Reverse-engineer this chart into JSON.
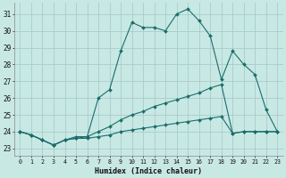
{
  "xlabel": "Humidex (Indice chaleur)",
  "bg_color": "#c8e8e4",
  "grid_color": "#a8cccc",
  "line_color": "#1a6e6a",
  "xticks": [
    0,
    1,
    2,
    3,
    4,
    5,
    6,
    7,
    8,
    9,
    10,
    11,
    12,
    13,
    14,
    15,
    16,
    17,
    18,
    19,
    20,
    21,
    22,
    23
  ],
  "yticks": [
    23,
    24,
    25,
    26,
    27,
    28,
    29,
    30,
    31
  ],
  "xlim": [
    -0.5,
    23.5
  ],
  "ylim": [
    22.55,
    31.65
  ],
  "line1_x": [
    0,
    1,
    2,
    3,
    4,
    5,
    6,
    7,
    8,
    9,
    10,
    11,
    12,
    13,
    14,
    15,
    16,
    17,
    18,
    19,
    20,
    21,
    22,
    23
  ],
  "line1_y": [
    24.0,
    23.8,
    23.5,
    23.2,
    23.5,
    23.7,
    23.7,
    26.0,
    26.5,
    28.8,
    30.5,
    30.2,
    30.2,
    30.0,
    31.0,
    31.3,
    30.6,
    29.7,
    27.1,
    28.8,
    28.0,
    27.4,
    25.3,
    24.0
  ],
  "line2_x": [
    0,
    1,
    2,
    3,
    4,
    5,
    6,
    7,
    8,
    9,
    10,
    11,
    12,
    13,
    14,
    15,
    16,
    17,
    18,
    19,
    20,
    21,
    22,
    23
  ],
  "line2_y": [
    24.0,
    23.8,
    23.5,
    23.2,
    23.5,
    23.6,
    23.7,
    24.0,
    24.3,
    24.7,
    25.0,
    25.2,
    25.5,
    25.7,
    25.9,
    26.1,
    26.3,
    26.6,
    26.8,
    23.9,
    24.0,
    24.0,
    24.0,
    24.0
  ],
  "line3_x": [
    0,
    1,
    2,
    3,
    4,
    5,
    6,
    7,
    8,
    9,
    10,
    11,
    12,
    13,
    14,
    15,
    16,
    17,
    18,
    19,
    20,
    21,
    22,
    23
  ],
  "line3_y": [
    24.0,
    23.8,
    23.5,
    23.2,
    23.5,
    23.6,
    23.6,
    23.7,
    23.8,
    24.0,
    24.1,
    24.2,
    24.3,
    24.4,
    24.5,
    24.6,
    24.7,
    24.8,
    24.9,
    23.9,
    24.0,
    24.0,
    24.0,
    24.0
  ]
}
